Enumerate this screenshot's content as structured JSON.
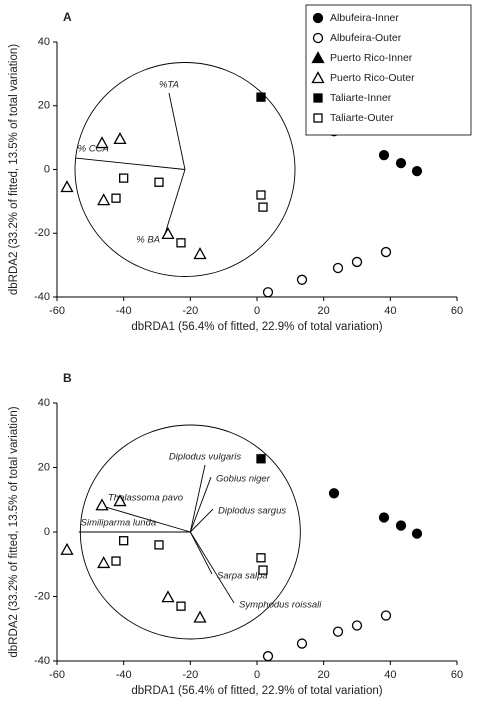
{
  "chart_data": [
    {
      "type": "scatter",
      "panel": "A",
      "xlabel": "dbRDA1 (56.4% of fitted, 22.9% of total variation)",
      "ylabel": "dbRDA2 (33.2% of fitted, 13.5% of total variation)",
      "xlim": [
        -60,
        60
      ],
      "ylim": [
        -40,
        40
      ],
      "xticks": [
        -60,
        -40,
        -20,
        0,
        20,
        40,
        60
      ],
      "yticks": [
        -40,
        -20,
        0,
        20,
        40
      ],
      "legend": "upper right",
      "series": [
        {
          "name": "Albufeira-Inner",
          "marker": "circle",
          "filled": true,
          "color": "#000000",
          "x": [
            23.1,
            38.1,
            43.2,
            48
          ],
          "y": [
            12,
            4.5,
            2,
            -0.5
          ]
        },
        {
          "name": "Albufeira-Outer",
          "marker": "circle",
          "filled": false,
          "color": "#000000",
          "x": [
            3.3,
            13.5,
            24.3,
            30,
            38.7
          ],
          "y": [
            -38.5,
            -34.6,
            -30.9,
            -29,
            -25.9
          ]
        },
        {
          "name": "Puerto Rico-Inner",
          "marker": "triangle",
          "filled": true,
          "color": "#000000",
          "x": [],
          "y": []
        },
        {
          "name": "Puerto Rico-Outer",
          "marker": "triangle",
          "filled": false,
          "color": "#000000",
          "x": [
            -46.5,
            -41.1,
            -57,
            -46,
            -26.7,
            -17.1
          ],
          "y": [
            8.3,
            9.6,
            -5.5,
            -9.6,
            -20.2,
            -26.5
          ]
        },
        {
          "name": "Taliarte-Inner",
          "marker": "square",
          "filled": true,
          "color": "#000000",
          "x": [
            1.2
          ],
          "y": [
            22.7
          ]
        },
        {
          "name": "Taliarte-Outer",
          "marker": "square",
          "filled": false,
          "color": "#000000",
          "x": [
            -40,
            -29.4,
            -42.3,
            -22.8,
            1.2,
            1.8
          ],
          "y": [
            -2.7,
            -4,
            -9,
            -23,
            -8,
            -11.8
          ]
        }
      ],
      "vector_origin": [
        -21.6,
        0
      ],
      "vectors": [
        {
          "label": "%TA",
          "x": -26.4,
          "y": 24
        },
        {
          "label": "% CCA",
          "x": -54.4,
          "y": 3.6
        },
        {
          "label": "% BA",
          "x": -27.9,
          "y": -21.2
        }
      ]
    },
    {
      "type": "scatter",
      "panel": "B",
      "xlabel": "dbRDA1 (56.4% of fitted, 22.9% of total variation)",
      "ylabel": "dbRDA2 (33.2% of fitted, 13.5% of total variation)",
      "xlim": [
        -60,
        60
      ],
      "ylim": [
        -40,
        40
      ],
      "xticks": [
        -60,
        -40,
        -20,
        0,
        20,
        40,
        60
      ],
      "yticks": [
        -40,
        -20,
        0,
        20,
        40
      ],
      "series": [
        {
          "marker": "circle",
          "filled": true,
          "color": "#000000",
          "x": [
            23.1,
            38.1,
            43.2,
            48
          ],
          "y": [
            12,
            4.5,
            2,
            -0.5
          ]
        },
        {
          "marker": "circle",
          "filled": false,
          "color": "#000000",
          "x": [
            3.3,
            13.5,
            24.3,
            30,
            38.7
          ],
          "y": [
            -38.5,
            -34.6,
            -30.9,
            -29,
            -25.9
          ]
        },
        {
          "marker": "triangle",
          "filled": false,
          "color": "#000000",
          "x": [
            -46.5,
            -41.1,
            -57,
            -46,
            -26.7,
            -17.1
          ],
          "y": [
            8.3,
            9.6,
            -5.5,
            -9.6,
            -20.2,
            -26.5
          ]
        },
        {
          "marker": "square",
          "filled": true,
          "color": "#000000",
          "x": [
            1.2
          ],
          "y": [
            22.7
          ]
        },
        {
          "marker": "square",
          "filled": false,
          "color": "#000000",
          "x": [
            -40,
            -29.4,
            -42.3,
            -22.8,
            1.2,
            1.8
          ],
          "y": [
            -2.7,
            -4,
            -9,
            -23,
            -8,
            -11.8
          ]
        }
      ],
      "vector_origin": [
        -20,
        0
      ],
      "vectors": [
        {
          "label": "Diplodus vulgaris",
          "x": -15.6,
          "y": 20.8
        },
        {
          "label": "Gobius niger",
          "x": -13.8,
          "y": 17
        },
        {
          "label": "Diplodus sargus",
          "x": -13.2,
          "y": 7.1
        },
        {
          "label": "Thalassoma pavo",
          "x": -45.3,
          "y": 7.7
        },
        {
          "label": "Similiparma lunda",
          "x": -53.5,
          "y": 0
        },
        {
          "label": "Sarpa salpa",
          "x": -13.5,
          "y": -13
        },
        {
          "label": "Symphodus roissali",
          "x": -6.9,
          "y": -22
        }
      ]
    }
  ]
}
